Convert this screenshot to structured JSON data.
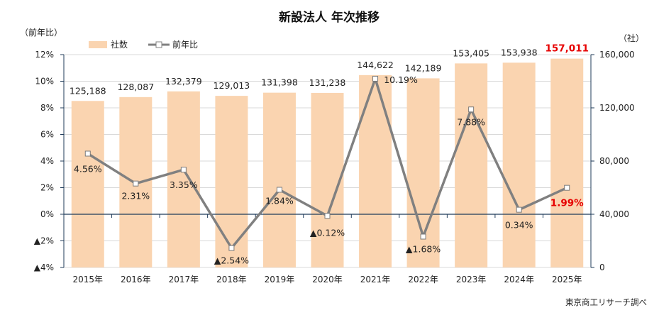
{
  "chart_data": {
    "type": "bar",
    "title": "新設法人 年次推移",
    "left_axis_unit": "（前年比）",
    "right_axis_unit": "（社）",
    "source": "東京商工リサーチ調べ",
    "categories": [
      "2015年",
      "2016年",
      "2017年",
      "2018年",
      "2019年",
      "2020年",
      "2021年",
      "2022年",
      "2023年",
      "2024年",
      "2025年"
    ],
    "series": [
      {
        "name": "社数",
        "kind": "bar",
        "axis": "right",
        "color": "#fad4b0",
        "values": [
          125188,
          128087,
          132379,
          129013,
          131398,
          131238,
          144622,
          142189,
          153405,
          153938,
          157011
        ],
        "labels": [
          "125,188",
          "128,087",
          "132,379",
          "129,013",
          "131,398",
          "131,238",
          "144,622",
          "142,189",
          "153,405",
          "153,938",
          "157,011"
        ]
      },
      {
        "name": "前年比",
        "kind": "line",
        "axis": "left",
        "color": "#808080",
        "values": [
          4.56,
          2.31,
          3.35,
          -2.54,
          1.84,
          -0.12,
          10.19,
          -1.68,
          7.88,
          0.34,
          1.99
        ],
        "labels": [
          "4.56%",
          "2.31%",
          "3.35%",
          "▲2.54%",
          "1.84%",
          "▲0.12%",
          "10.19%",
          "▲1.68%",
          "7.88%",
          "0.34%",
          "1.99%"
        ]
      }
    ],
    "left_axis": {
      "min": -4,
      "max": 12,
      "ticks": [
        -4,
        -2,
        0,
        2,
        4,
        6,
        8,
        10,
        12
      ],
      "tick_labels": [
        "▲4%",
        "▲2%",
        "0%",
        "2%",
        "4%",
        "6%",
        "8%",
        "10%",
        "12%"
      ]
    },
    "right_axis": {
      "min": 0,
      "max": 160000,
      "ticks": [
        0,
        40000,
        80000,
        120000,
        160000
      ],
      "tick_labels": [
        "0",
        "40,000",
        "80,000",
        "120,000",
        "160,000"
      ]
    },
    "highlight_index": 10,
    "highlight_color": "#e60000",
    "axis_color": "#1f3b5a",
    "legend_position": "top-left"
  }
}
